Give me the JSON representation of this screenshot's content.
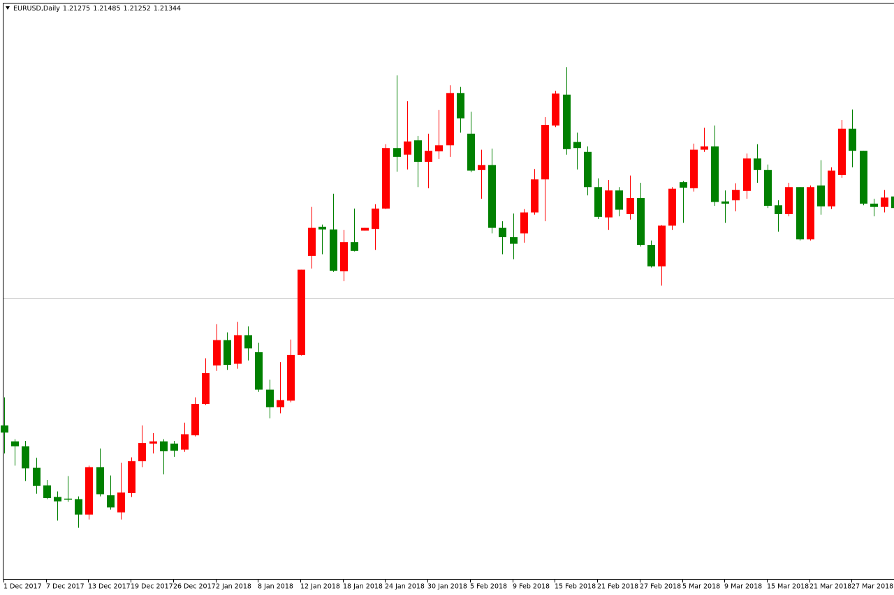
{
  "chart_data": {
    "type": "candlestick",
    "title": "EURUSD,Daily",
    "header_values": [
      1.21275,
      1.21485,
      1.21252,
      1.21344
    ],
    "up_color": "#ff0000",
    "down_color": "#008000",
    "bid_line_color": "#c0c0c0",
    "ylim": [
      1.1623,
      1.2675
    ],
    "categories": [
      "1 Dec 2017",
      null,
      null,
      null,
      "7 Dec 2017",
      null,
      null,
      null,
      "13 Dec 2017",
      null,
      null,
      null,
      "19 Dec 2017",
      null,
      null,
      null,
      "26 Dec 2017",
      null,
      null,
      null,
      "2 Jan 2018",
      null,
      null,
      null,
      "8 Jan 2018",
      null,
      null,
      null,
      "12 Jan 2018",
      null,
      null,
      null,
      "18 Jan 2018",
      null,
      null,
      null,
      "24 Jan 2018",
      null,
      null,
      null,
      "30 Jan 2018",
      null,
      null,
      null,
      "5 Feb 2018",
      null,
      null,
      null,
      "9 Feb 2018",
      null,
      null,
      null,
      "15 Feb 2018",
      null,
      null,
      null,
      "21 Feb 2018",
      null,
      null,
      null,
      "27 Feb 2018",
      null,
      null,
      null,
      "5 Mar 2018",
      null,
      null,
      null,
      "9 Mar 2018",
      null,
      null,
      null,
      "15 Mar 2018",
      null,
      null,
      null,
      "21 Mar 2018",
      null,
      null,
      null,
      "27 Mar 2018",
      null,
      null,
      null,
      null
    ],
    "open": [
      1.1902,
      1.1873,
      1.1864,
      1.1825,
      1.1793,
      1.1772,
      1.1769,
      1.1768,
      1.174,
      1.1826,
      1.1775,
      1.1744,
      1.1779,
      1.1837,
      1.1869,
      1.1873,
      1.1869,
      1.1858,
      1.1884,
      1.1941,
      1.2011,
      1.2057,
      1.2014,
      1.2066,
      1.2035,
      1.1967,
      1.1935,
      1.1947,
      1.203,
      1.221,
      1.2263,
      1.2258,
      1.2182,
      1.2235,
      1.2256,
      1.2259,
      1.2296,
      1.2406,
      1.2394,
      1.242,
      1.2381,
      1.24,
      1.2411,
      1.2506,
      1.2432,
      1.2366,
      1.2375,
      1.2261,
      1.2244,
      1.2251,
      1.2289,
      1.2349,
      1.2447,
      1.2503,
      1.2417,
      1.2399,
      1.2335,
      1.228,
      1.2329,
      1.2286,
      1.2315,
      1.223,
      1.2191,
      1.2265,
      1.2344,
      1.2333,
      1.2403,
      1.2409,
      1.2309,
      1.2311,
      1.2328,
      1.2387,
      1.2366,
      1.2302,
      1.2286,
      1.2335,
      1.224,
      1.2338,
      1.23,
      1.2357,
      1.2441,
      1.2401,
      1.2305,
      1.2299,
      1.2318
    ],
    "high": [
      1.1953,
      1.1877,
      1.1874,
      1.1843,
      1.1803,
      1.1782,
      1.181,
      1.1773,
      1.1829,
      1.186,
      1.1811,
      1.1834,
      1.1844,
      1.1902,
      1.1888,
      1.1877,
      1.1874,
      1.1907,
      1.1953,
      1.2024,
      1.2086,
      1.2071,
      1.209,
      1.2082,
      1.2052,
      1.1985,
      1.2017,
      1.2058,
      1.2185,
      1.2299,
      1.2267,
      1.2323,
      1.2257,
      1.2296,
      1.2261,
      1.2304,
      1.2413,
      1.2538,
      1.2491,
      1.2428,
      1.2432,
      1.2475,
      1.252,
      1.2517,
      1.2472,
      1.2403,
      1.2405,
      1.2273,
      1.2287,
      1.2295,
      1.2368,
      1.2462,
      1.251,
      1.2553,
      1.2434,
      1.2409,
      1.2351,
      1.2348,
      1.2335,
      1.2356,
      1.2343,
      1.2238,
      1.2266,
      1.2335,
      1.2346,
      1.2414,
      1.2443,
      1.2447,
      1.2329,
      1.2342,
      1.2396,
      1.2413,
      1.2376,
      1.2311,
      1.2343,
      1.2335,
      1.2338,
      1.2384,
      1.2371,
      1.2457,
      1.2476,
      1.2401,
      1.2314,
      1.233,
      1.2352
    ],
    "low": [
      1.1851,
      1.1829,
      1.1801,
      1.1778,
      1.1768,
      1.1729,
      1.1763,
      1.1716,
      1.1731,
      1.1773,
      1.1749,
      1.1731,
      1.1772,
      1.1826,
      1.1851,
      1.1813,
      1.1845,
      1.1854,
      1.1882,
      1.1939,
      1.2001,
      1.2003,
      1.2005,
      1.202,
      1.1963,
      1.1915,
      1.1924,
      1.1944,
      1.2029,
      1.2187,
      1.2213,
      1.2181,
      1.2164,
      1.2218,
      1.2256,
      1.2221,
      1.2295,
      1.2363,
      1.2367,
      1.2335,
      1.2333,
      1.2386,
      1.239,
      1.2434,
      1.2362,
      1.2314,
      1.2251,
      1.2213,
      1.2204,
      1.2234,
      1.2285,
      1.2273,
      1.2444,
      1.2394,
      1.2367,
      1.232,
      1.2277,
      1.2257,
      1.2282,
      1.2276,
      1.2227,
      1.2189,
      1.2156,
      1.2257,
      1.227,
      1.2327,
      1.2399,
      1.2301,
      1.227,
      1.2291,
      1.2314,
      1.2343,
      1.2297,
      1.2254,
      1.2282,
      1.2238,
      1.2238,
      1.2285,
      1.2295,
      1.2352,
      1.2371,
      1.2302,
      1.2282,
      1.2289,
      1.228
    ],
    "close": [
      1.1889,
      1.1864,
      1.1824,
      1.1792,
      1.177,
      1.1764,
      1.1767,
      1.174,
      1.1826,
      1.1777,
      1.1753,
      1.178,
      1.1837,
      1.187,
      1.1873,
      1.1855,
      1.1856,
      1.1886,
      1.1941,
      1.1997,
      1.2057,
      1.2012,
      1.2066,
      1.2042,
      1.1967,
      1.1935,
      1.1948,
      1.203,
      1.2185,
      1.2261,
      1.2258,
      1.2183,
      1.2235,
      1.2219,
      1.2261,
      1.2296,
      1.2406,
      1.239,
      1.2418,
      1.2381,
      1.2401,
      1.2411,
      1.2506,
      1.246,
      1.2365,
      1.2375,
      1.2261,
      1.2244,
      1.2232,
      1.2289,
      1.2349,
      1.2448,
      1.2505,
      1.2404,
      1.2406,
      1.2335,
      1.2281,
      1.2329,
      1.2294,
      1.2315,
      1.223,
      1.2191,
      1.2265,
      1.2332,
      1.2334,
      1.2403,
      1.2409,
      1.2308,
      1.2305,
      1.233,
      1.2387,
      1.2366,
      1.2301,
      1.2286,
      1.2335,
      1.224,
      1.2335,
      1.23,
      1.2365,
      1.2441,
      1.2401,
      1.2305,
      1.2299,
      1.2316,
      1.2297
    ]
  }
}
